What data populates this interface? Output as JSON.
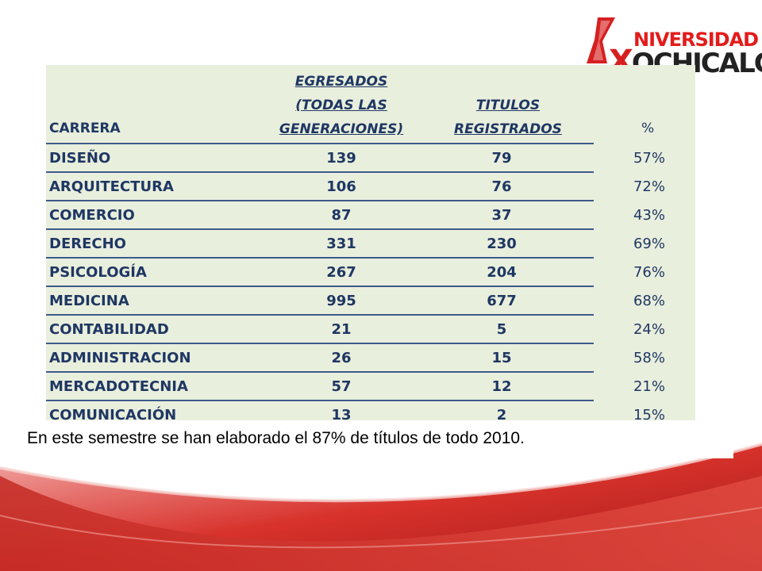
{
  "logo": {
    "line1": "NIVERSIDAD",
    "line2_mark": "X",
    "line2": "OCHICALCO"
  },
  "table": {
    "headers": {
      "carrera": "CARRERA",
      "egresados": [
        "EGRESADOS",
        "(TODAS LAS",
        "GENERACIONES)"
      ],
      "titulos": [
        "TITULOS",
        "REGISTRADOS"
      ],
      "pct": "%"
    },
    "rows": [
      {
        "carrera": "DISEÑO",
        "egresados": "139",
        "titulos": "79",
        "pct": "57%"
      },
      {
        "carrera": "ARQUITECTURA",
        "egresados": "106",
        "titulos": "76",
        "pct": "72%"
      },
      {
        "carrera": "COMERCIO",
        "egresados": "87",
        "titulos": "37",
        "pct": "43%"
      },
      {
        "carrera": "DERECHO",
        "egresados": "331",
        "titulos": "230",
        "pct": "69%"
      },
      {
        "carrera": "PSICOLOGÍA",
        "egresados": "267",
        "titulos": "204",
        "pct": "76%"
      },
      {
        "carrera": "MEDICINA",
        "egresados": "995",
        "titulos": "677",
        "pct": "68%"
      },
      {
        "carrera": "CONTABILIDAD",
        "egresados": "21",
        "titulos": "5",
        "pct": "24%"
      },
      {
        "carrera": "ADMINISTRACION",
        "egresados": "26",
        "titulos": "15",
        "pct": "58%"
      },
      {
        "carrera": "MERCADOTECNIA",
        "egresados": "57",
        "titulos": "12",
        "pct": "21%"
      },
      {
        "carrera": "COMUNICACIÓN",
        "egresados": "13",
        "titulos": "2",
        "pct": "15%"
      }
    ]
  },
  "caption": "En este semestre se han elaborado el 87% de títulos  de todo 2010.",
  "colors": {
    "table_bg": "#e9efdd",
    "text": "#1f3763",
    "rule": "#3d5a8c",
    "brand_red": "#d62020"
  }
}
